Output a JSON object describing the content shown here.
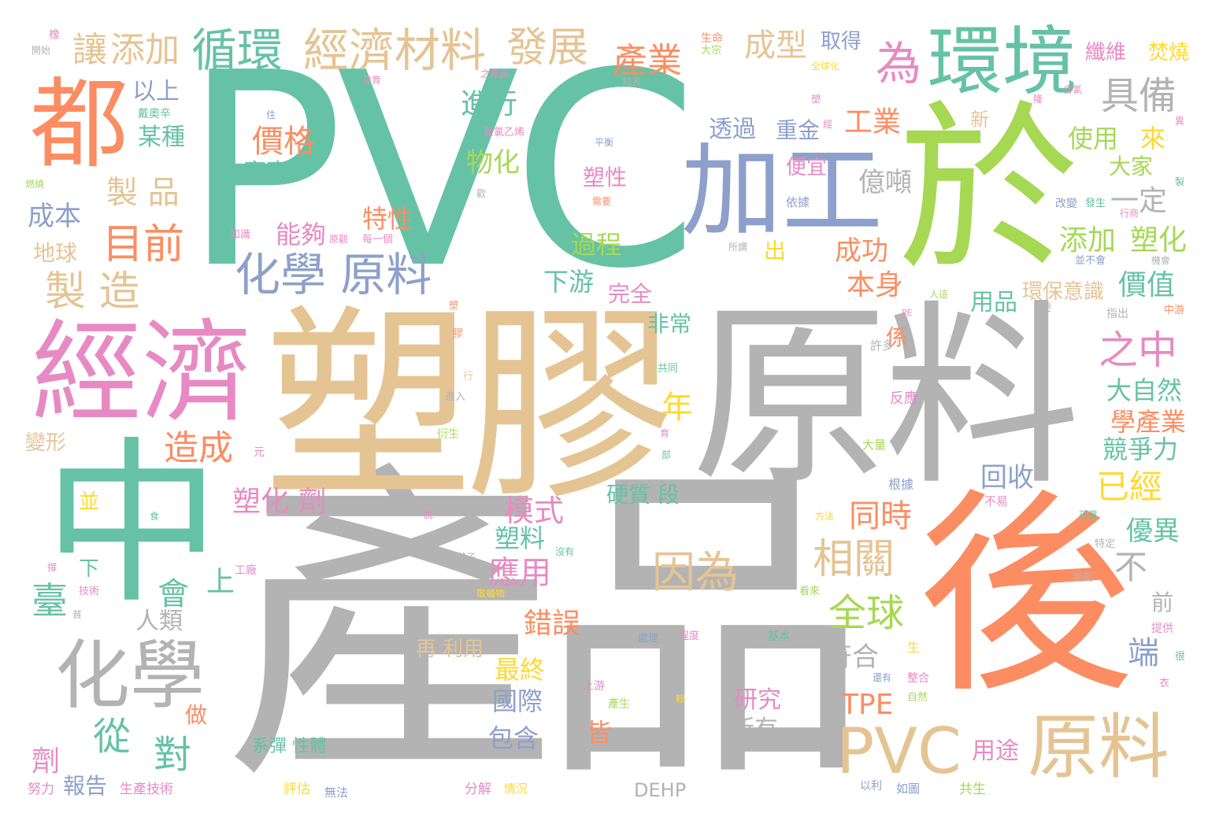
{
  "palette": {
    "teal": "#66c2a5",
    "orange": "#fc8d62",
    "blue": "#8da0cb",
    "pink": "#e78ac3",
    "green": "#a6d854",
    "yellow": "#ffd92f",
    "tan": "#e5c494",
    "gray": "#b3b3b3"
  },
  "words": [
    "PVC",
    "產品",
    "塑膠",
    "原料",
    "於",
    "後",
    "中",
    "經濟",
    "都",
    "環境",
    "加工",
    "化學",
    "PVC",
    "原料",
    "循環",
    "經濟材料",
    "發展",
    "化學 原料",
    "為",
    "具備",
    "因為",
    "價格",
    "製 品",
    "目前",
    "製 造",
    "添加",
    "讓",
    "產業",
    "成型",
    "取得",
    "纖維",
    "焚燒",
    "工業",
    "透過",
    "重金",
    "進行",
    "物化",
    "特性",
    "能夠",
    "過程",
    "下游",
    "完全",
    "億噸",
    "成功",
    "本身",
    "使用",
    "來",
    "大家",
    "一定",
    "添加",
    "塑化",
    "價值",
    "環保意識",
    "用品",
    "之中",
    "大自然",
    "學產業",
    "競爭力",
    "已經",
    "回收",
    "相關",
    "同時",
    "全球",
    "年",
    "造成",
    "塑化 劑",
    "模式",
    "塑料",
    "應用",
    "會",
    "臺",
    "錯誤",
    "最終",
    "國際",
    "包含",
    "皆",
    "研究",
    "所有",
    "TPE",
    "符合",
    "不",
    "前",
    "優異",
    "端",
    "用途",
    "再 利用",
    "從",
    "對",
    "劑",
    "報告",
    "人類",
    "成本",
    "地球",
    "某種",
    "以上",
    "非常",
    "上",
    "下",
    "硬質 段",
    "廢棄",
    "便宜",
    "塑性",
    "係",
    "出",
    "做",
    "系彈 性體",
    "DEHP",
    "許多",
    "反應",
    "大量",
    "根據",
    "不易",
    "元",
    "並",
    "生產技術",
    "努力",
    "評估",
    "無法",
    "分解",
    "情況",
    "共生",
    "如圖",
    "以利",
    "生",
    "約",
    "提供",
    "變形",
    "開始",
    "橡",
    "戴奧辛",
    "燃燒",
    "知識",
    "原觀",
    "每一個",
    "依據",
    "所謂",
    "改變",
    "發生",
    "行商",
    "並不會",
    "機會",
    "指出",
    "中游",
    "硬",
    "人這",
    "PE",
    "含氯",
    "之產品",
    "全球化",
    "發育",
    "知表",
    "平衡",
    "聚氯乙烯",
    "歡",
    "需要",
    "住",
    "生命",
    "大宗",
    "新",
    "特定",
    "兩動",
    "孩童",
    "看來",
    "基本",
    "程度",
    "處理",
    "工廠",
    "技術",
    "上游",
    "產生",
    "較",
    "還有",
    "整合",
    "自然",
    "衣",
    "很",
    "敬蛹物",
    "沒有",
    "鞋子",
    "撐",
    "貧",
    "方法",
    "食",
    "衍生",
    "進入",
    "共同",
    "育",
    "部",
    "膠",
    "塑",
    "行",
    "說",
    "隆",
    "異",
    "經",
    "製",
    "塑"
  ]
}
